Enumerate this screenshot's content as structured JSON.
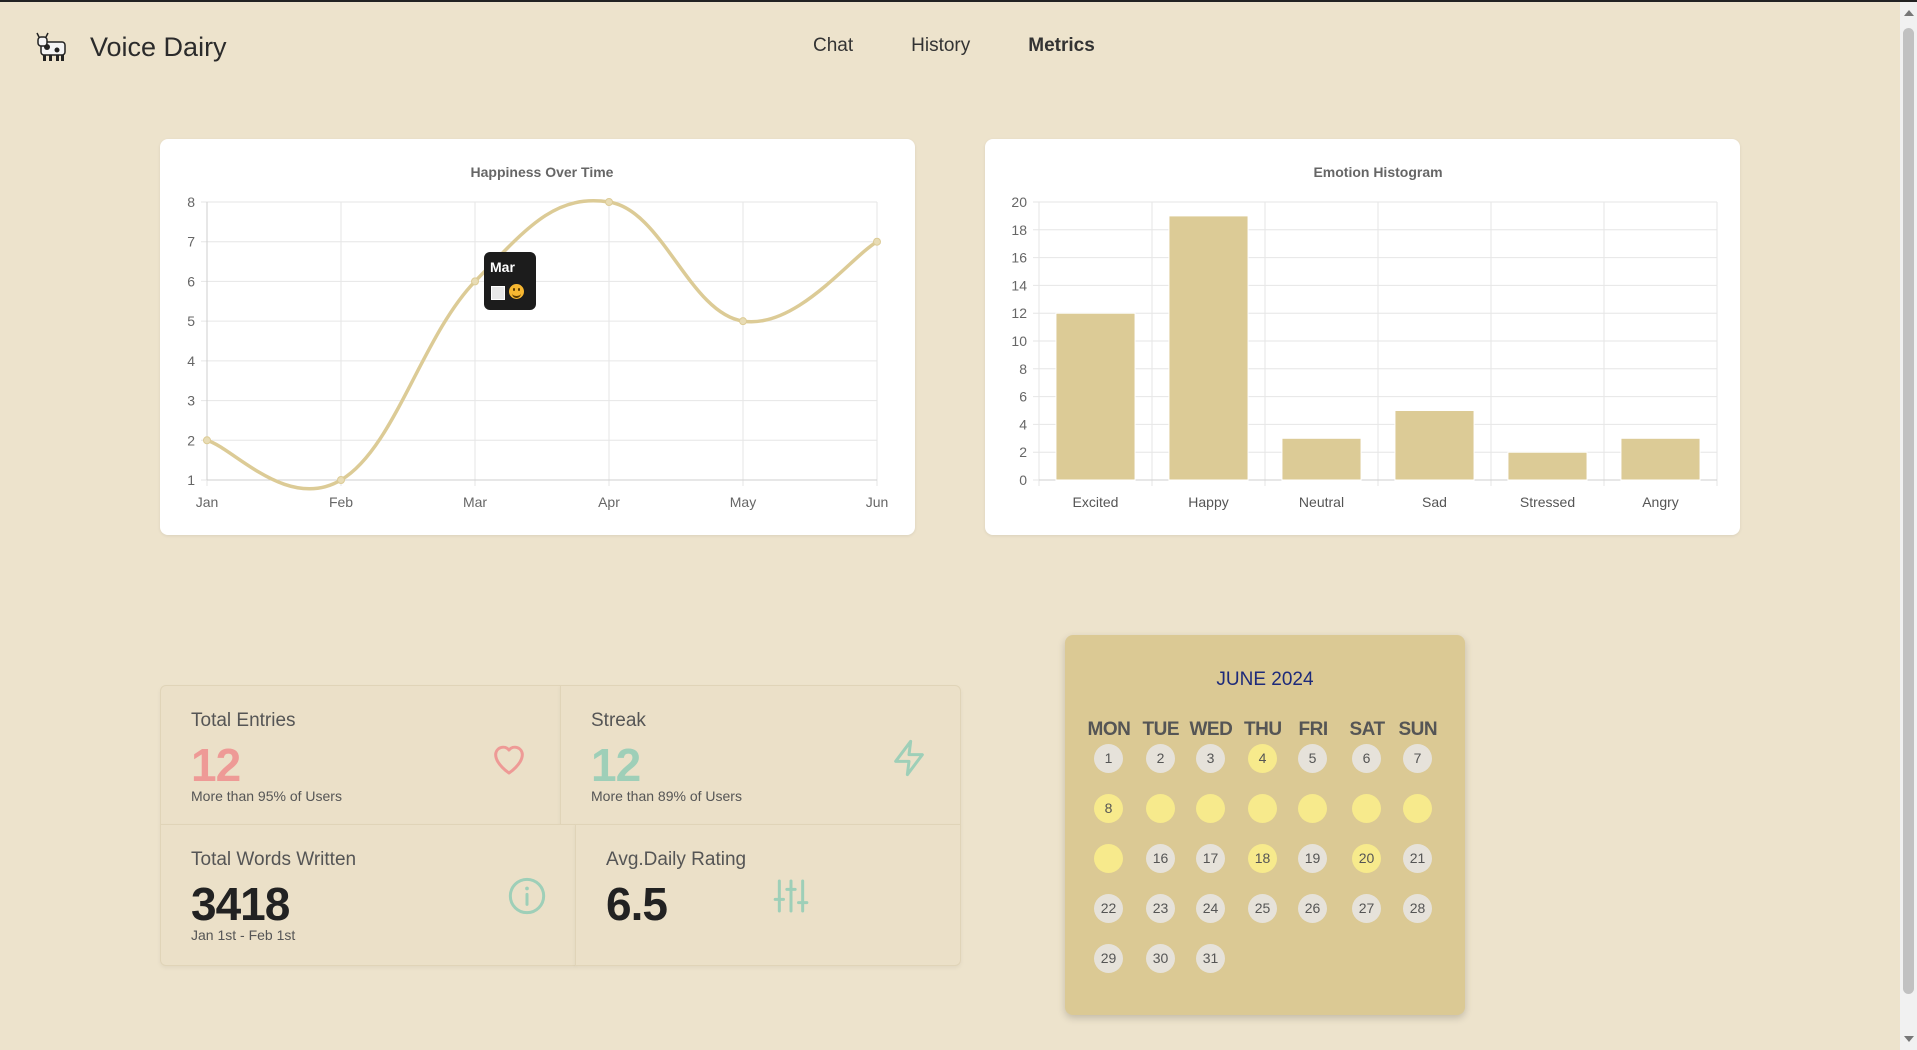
{
  "app": {
    "title": "Voice Dairy"
  },
  "nav": {
    "chat": "Chat",
    "history": "History",
    "metrics": "Metrics"
  },
  "chart_data": [
    {
      "type": "line",
      "title": "Happiness Over Time",
      "categories": [
        "Jan",
        "Feb",
        "Mar",
        "Apr",
        "May",
        "Jun"
      ],
      "values": [
        2,
        1,
        6,
        8,
        5,
        7
      ],
      "ylim": [
        1,
        8
      ],
      "yticks": [
        1,
        2,
        3,
        4,
        5,
        6,
        7,
        8
      ],
      "grid": true,
      "color": "#dccb96",
      "tooltip": {
        "label": "Mar"
      }
    },
    {
      "type": "bar",
      "title": "Emotion Histogram",
      "categories": [
        "Excited",
        "Happy",
        "Neutral",
        "Sad",
        "Stressed",
        "Angry"
      ],
      "values": [
        12,
        19,
        3,
        5,
        2,
        3
      ],
      "ylim": [
        0,
        20
      ],
      "yticks": [
        0,
        2,
        4,
        6,
        8,
        10,
        12,
        14,
        16,
        18,
        20
      ],
      "grid": true,
      "color": "#dccb96"
    }
  ],
  "stats": {
    "total_entries": {
      "label": "Total Entries",
      "value": "12",
      "sub": "More than 95% of Users",
      "color": "#ee9a96"
    },
    "streak": {
      "label": "Streak",
      "value": "12",
      "sub": "More than 89% of Users",
      "color": "#9ecfb8"
    },
    "total_words": {
      "label": "Total Words Written",
      "value": "3418",
      "sub": "Jan 1st - Feb 1st"
    },
    "avg_rating": {
      "label": "Avg.Daily Rating",
      "value": "6.5"
    }
  },
  "calendar": {
    "title": "JUNE 2024",
    "weekdays": [
      "MON",
      "TUE",
      "WED",
      "THU",
      "FRI",
      "SAT",
      "SUN"
    ],
    "rows": [
      [
        {
          "d": "1"
        },
        {
          "d": "2"
        },
        {
          "d": "3"
        },
        {
          "d": "4",
          "h": true
        },
        {
          "d": "5"
        },
        {
          "d": "6"
        },
        {
          "d": "7"
        }
      ],
      [
        {
          "d": "8",
          "h": true
        },
        {
          "d": "",
          "h": true
        },
        {
          "d": "",
          "h": true
        },
        {
          "d": "",
          "h": true
        },
        {
          "d": "",
          "h": true
        },
        {
          "d": "",
          "h": true
        },
        {
          "d": "",
          "h": true
        }
      ],
      [
        {
          "d": "",
          "h": true
        },
        {
          "d": "16"
        },
        {
          "d": "17"
        },
        {
          "d": "18",
          "h": true
        },
        {
          "d": "19"
        },
        {
          "d": "20",
          "h": true
        },
        {
          "d": "21"
        }
      ],
      [
        {
          "d": "22"
        },
        {
          "d": "23"
        },
        {
          "d": "24"
        },
        {
          "d": "25"
        },
        {
          "d": "26"
        },
        {
          "d": "27"
        },
        {
          "d": "28"
        }
      ],
      [
        {
          "d": "29"
        },
        {
          "d": "30"
        },
        {
          "d": "31"
        }
      ]
    ]
  }
}
